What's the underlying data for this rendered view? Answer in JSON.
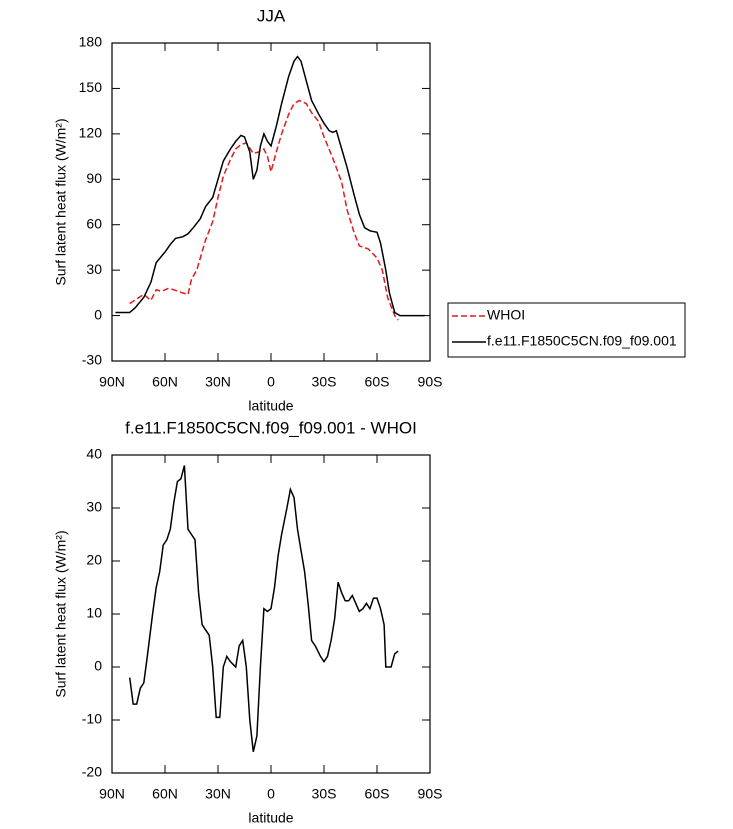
{
  "chart_data": [
    {
      "type": "line",
      "title": "JJA",
      "xlabel": "latitude",
      "ylabel": "Surf latent heat flux (W/m²)",
      "xlim": [
        90,
        -90
      ],
      "xticks": [
        {
          "value": 90,
          "label": "90N"
        },
        {
          "value": 60,
          "label": "60N"
        },
        {
          "value": 30,
          "label": "30N"
        },
        0,
        {
          "value": -30,
          "label": "30S"
        },
        {
          "value": -60,
          "label": "60S"
        },
        {
          "value": -90,
          "label": "90S"
        }
      ],
      "ylim": [
        -30,
        180
      ],
      "yticks": [
        -30,
        0,
        30,
        60,
        90,
        120,
        150,
        180
      ],
      "legend": "right",
      "series": [
        {
          "name": "WHOI",
          "color": "#e31a1c",
          "dashed": true,
          "x": [
            80,
            76,
            72,
            68,
            65,
            62,
            58,
            55,
            50,
            47,
            45,
            42,
            40,
            37,
            33,
            30,
            27,
            23,
            20,
            17,
            14,
            10,
            7,
            4,
            2,
            0,
            -3,
            -6,
            -10,
            -13,
            -16,
            -20,
            -23,
            -27,
            -30,
            -35,
            -40,
            -43,
            -47,
            -50,
            -55,
            -60,
            -63,
            -66,
            -70,
            -72
          ],
          "values": [
            8,
            11,
            14,
            10,
            17,
            16,
            18,
            17,
            15,
            14,
            24,
            30,
            38,
            50,
            62,
            78,
            92,
            103,
            110,
            113,
            114,
            107,
            108,
            110,
            105,
            95,
            108,
            120,
            133,
            140,
            142,
            140,
            134,
            128,
            118,
            104,
            88,
            70,
            55,
            46,
            44,
            38,
            30,
            12,
            0,
            -3
          ]
        },
        {
          "name": "f.e11.F1850C5CN.f09_f09.001",
          "color": "#000000",
          "dashed": false,
          "x": [
            88,
            80,
            77,
            72,
            68,
            65,
            60,
            57,
            54,
            50,
            47,
            44,
            40,
            37,
            33,
            30,
            27,
            23,
            20,
            17,
            15,
            12,
            10,
            8,
            6,
            4,
            2,
            0,
            -3,
            -6,
            -10,
            -13,
            -15,
            -17,
            -20,
            -23,
            -27,
            -30,
            -33,
            -35,
            -37,
            -40,
            -43,
            -47,
            -50,
            -53,
            -56,
            -60,
            -62,
            -65,
            -67,
            -70,
            -73,
            -80,
            -87
          ],
          "values": [
            2,
            2,
            5,
            12,
            22,
            35,
            42,
            47,
            51,
            52,
            54,
            58,
            64,
            72,
            78,
            90,
            102,
            110,
            115,
            119,
            118,
            108,
            90,
            96,
            112,
            120,
            115,
            112,
            125,
            140,
            158,
            168,
            171,
            168,
            155,
            142,
            133,
            127,
            122,
            121,
            122,
            110,
            98,
            80,
            67,
            58,
            56,
            55,
            48,
            30,
            15,
            2,
            0,
            0,
            0
          ]
        }
      ]
    },
    {
      "type": "line",
      "title": "f.e11.F1850C5CN.f09_f09.001 - WHOI",
      "xlabel": "latitude",
      "ylabel": "Surf latent heat flux (W/m²)",
      "xlim": [
        90,
        -90
      ],
      "xticks": [
        {
          "value": 90,
          "label": "90N"
        },
        {
          "value": 60,
          "label": "60N"
        },
        {
          "value": 30,
          "label": "30N"
        },
        0,
        {
          "value": -30,
          "label": "30S"
        },
        {
          "value": -60,
          "label": "60S"
        },
        {
          "value": -90,
          "label": "90S"
        }
      ],
      "ylim": [
        -20,
        40
      ],
      "yticks": [
        -20,
        -10,
        0,
        10,
        20,
        30,
        40
      ],
      "series": [
        {
          "color": "#000000",
          "dashed": false,
          "x": [
            80,
            78,
            76,
            74,
            72,
            70,
            67,
            65,
            63,
            61,
            59,
            57,
            55,
            53,
            51,
            49,
            47,
            45,
            43,
            41,
            39,
            37,
            35,
            33,
            31,
            29,
            27,
            25,
            23,
            20,
            18,
            16,
            14,
            12,
            10,
            8,
            6,
            4,
            2,
            0,
            -2,
            -4,
            -6,
            -9,
            -11,
            -13,
            -15,
            -17,
            -19,
            -21,
            -23,
            -25,
            -28,
            -30,
            -32,
            -34,
            -36,
            -38,
            -40,
            -42,
            -44,
            -46,
            -48,
            -50,
            -52,
            -54,
            -56,
            -58,
            -60,
            -62,
            -64,
            -65,
            -68,
            -70,
            -72
          ],
          "values": [
            -2,
            -7,
            -7,
            -4,
            -3,
            2,
            10,
            15,
            18,
            23,
            24,
            26,
            31,
            35,
            35.5,
            38,
            26,
            25,
            24,
            14,
            8,
            7,
            6,
            0,
            -9.5,
            -9.5,
            0,
            2,
            1,
            0,
            4,
            5,
            0,
            -10,
            -16,
            -13,
            0,
            11,
            10.5,
            11,
            15,
            21,
            25,
            30,
            33.5,
            32,
            26,
            22,
            18,
            12,
            5,
            4,
            2,
            1,
            2,
            5,
            9,
            16,
            14,
            12.5,
            12.5,
            13.5,
            12,
            10.5,
            11,
            12,
            11,
            13,
            13,
            11,
            8,
            0,
            0,
            2.5,
            3
          ]
        }
      ]
    }
  ]
}
